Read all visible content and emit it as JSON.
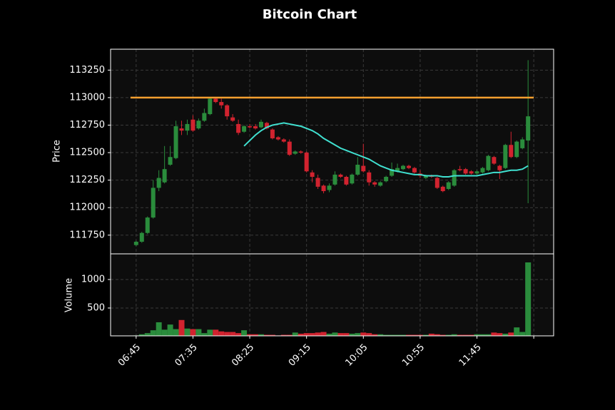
{
  "chart_data": {
    "type": "candlestick",
    "title": "Bitcoin Chart",
    "ylabel": "Price",
    "volume_label": "Volume",
    "open": [
      111660,
      111690,
      111770,
      111910,
      112180,
      112230,
      112390,
      112450,
      112720,
      112700,
      112800,
      112720,
      112790,
      112850,
      112990,
      112960,
      112930,
      112820,
      112760,
      112690,
      112740,
      112740,
      112730,
      112770,
      112710,
      112640,
      112620,
      112600,
      112490,
      112510,
      112500,
      112320,
      112270,
      112200,
      112160,
      112210,
      112300,
      112280,
      112220,
      112300,
      112380,
      112320,
      112230,
      112200,
      112240,
      112290,
      112330,
      112350,
      112380,
      112360,
      112310,
      112270,
      112290,
      112270,
      112190,
      112170,
      112200,
      112350,
      112350,
      112330,
      112310,
      112320,
      112340,
      112460,
      112380,
      112360,
      112570,
      112460,
      112540,
      112610
    ],
    "high": [
      111700,
      111780,
      111920,
      112250,
      112340,
      112560,
      112560,
      112790,
      112790,
      112800,
      112840,
      112810,
      112900,
      113000,
      113000,
      112990,
      112940,
      112850,
      112800,
      112750,
      112760,
      112760,
      112800,
      112780,
      112720,
      112650,
      112630,
      112620,
      112520,
      112520,
      112510,
      112340,
      112300,
      112210,
      112220,
      112330,
      112310,
      112290,
      112310,
      112460,
      112580,
      112340,
      112240,
      112240,
      112290,
      112410,
      112400,
      112390,
      112390,
      112370,
      112340,
      112300,
      112300,
      112280,
      112200,
      112240,
      112350,
      112380,
      112360,
      112340,
      112340,
      112370,
      112480,
      112470,
      112390,
      112580,
      112690,
      112610,
      112640,
      113340
    ],
    "low": [
      111650,
      111680,
      111760,
      111900,
      112150,
      112220,
      112380,
      112440,
      112660,
      112660,
      112690,
      112710,
      112780,
      112840,
      112950,
      112900,
      112800,
      112780,
      112660,
      112680,
      112720,
      112710,
      112720,
      112710,
      112620,
      112610,
      112590,
      112470,
      112480,
      112490,
      112320,
      112230,
      112170,
      112130,
      112140,
      112200,
      112270,
      112200,
      112210,
      112290,
      112320,
      112200,
      112190,
      112190,
      112230,
      112280,
      112320,
      112340,
      112350,
      112310,
      112270,
      112260,
      112270,
      112170,
      112140,
      112160,
      112190,
      112330,
      112300,
      112300,
      112300,
      112310,
      112330,
      112390,
      112260,
      112350,
      112450,
      112450,
      112530,
      112040
    ],
    "close": [
      111690,
      111770,
      111910,
      112180,
      112270,
      112350,
      112460,
      112740,
      112700,
      112760,
      112700,
      112790,
      112860,
      112990,
      112960,
      112930,
      112830,
      112790,
      112680,
      112740,
      112730,
      112720,
      112780,
      112720,
      112630,
      112620,
      112600,
      112480,
      112510,
      112500,
      112330,
      112280,
      112190,
      112150,
      112200,
      112300,
      112280,
      112210,
      112300,
      112390,
      112330,
      112230,
      112210,
      112230,
      112280,
      112350,
      112360,
      112380,
      112360,
      112320,
      112290,
      112290,
      112280,
      112180,
      112150,
      112230,
      112340,
      112340,
      112310,
      112310,
      112330,
      112360,
      112470,
      112400,
      112340,
      112570,
      112460,
      112600,
      112620,
      112830
    ],
    "volume": [
      20,
      40,
      60,
      110,
      250,
      120,
      210,
      130,
      290,
      140,
      130,
      130,
      60,
      120,
      120,
      90,
      80,
      80,
      60,
      110,
      40,
      40,
      40,
      30,
      30,
      20,
      30,
      30,
      70,
      50,
      60,
      60,
      70,
      80,
      50,
      70,
      60,
      60,
      50,
      60,
      70,
      60,
      40,
      40,
      30,
      30,
      30,
      30,
      30,
      30,
      30,
      30,
      50,
      40,
      30,
      30,
      40,
      30,
      30,
      30,
      40,
      40,
      40,
      70,
      60,
      50,
      70,
      160,
      80,
      1300
    ],
    "ma": {
      "color": "#40e0d0",
      "values": [
        null,
        null,
        null,
        null,
        null,
        null,
        null,
        null,
        null,
        null,
        null,
        null,
        null,
        null,
        null,
        null,
        null,
        null,
        null,
        112560,
        112610,
        112660,
        112700,
        112730,
        112750,
        112760,
        112770,
        112760,
        112750,
        112740,
        112720,
        112700,
        112670,
        112630,
        112600,
        112570,
        112540,
        112520,
        112500,
        112480,
        112460,
        112440,
        112410,
        112380,
        112360,
        112340,
        112330,
        112320,
        112310,
        112300,
        112300,
        112290,
        112290,
        112290,
        112280,
        112280,
        112290,
        112290,
        112290,
        112290,
        112290,
        112300,
        112310,
        112320,
        112320,
        112330,
        112340,
        112340,
        112350,
        112380
      ]
    },
    "hline": {
      "value": 113000,
      "color": "#f5a030"
    },
    "up_color": "#2a8c3c",
    "down_color": "#d1232f",
    "xlim": [
      -4.5,
      73.5
    ],
    "xticks": [
      {
        "value": 0,
        "label": "06:45"
      },
      {
        "value": 10,
        "label": "07:35"
      },
      {
        "value": 20,
        "label": "08:25"
      },
      {
        "value": 30,
        "label": "09:15"
      },
      {
        "value": 40,
        "label": "10:05"
      },
      {
        "value": 50,
        "label": "10:55"
      },
      {
        "value": 60,
        "label": "11:45"
      },
      {
        "value": 70
      }
    ],
    "ylim": [
      111580,
      113440
    ],
    "yticks": [
      111750,
      112000,
      112250,
      112500,
      112750,
      113000,
      113250
    ],
    "volume_ylim": [
      12,
      1450
    ],
    "volume_yticks": [
      500,
      1000
    ],
    "grid": true
  }
}
